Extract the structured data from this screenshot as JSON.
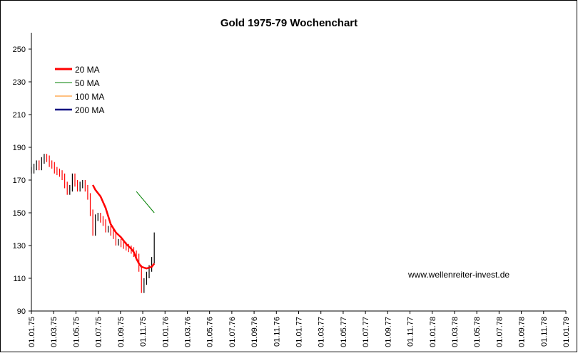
{
  "chart_data": {
    "type": "line",
    "title": "Gold 1975-79 Wochenchart",
    "xlabel": "",
    "ylabel": "",
    "ylim": [
      90,
      260
    ],
    "yticks": [
      90,
      110,
      130,
      150,
      170,
      190,
      210,
      230,
      250
    ],
    "x_ticks": [
      "01.01.75",
      "01.03.75",
      "01.05.75",
      "01.07.75",
      "01.09.75",
      "01.11.75",
      "01.01.76",
      "01.03.76",
      "01.05.76",
      "01.07.76",
      "01.09.76",
      "01.11.76",
      "01.01.77",
      "01.03.77",
      "01.05.77",
      "01.07.77",
      "01.09.77",
      "01.11.77",
      "01.01.78",
      "01.03.78",
      "01.05.78",
      "01.07.78",
      "01.09.78",
      "01.11.78",
      "01.01.79"
    ],
    "grid": false,
    "legend_position": "top-left",
    "watermark": "www.wellenreiter-invest.de",
    "colors": {
      "price_up": "#000000",
      "price_down": "#ff0000",
      "ma20": "#ff0000",
      "ma50": "#008000",
      "ma100": "#ff8000",
      "ma200": "#000080"
    },
    "price": {
      "name": "",
      "x": [
        0,
        1,
        2,
        3,
        4,
        5,
        6,
        7,
        8,
        9,
        10,
        11,
        12,
        13,
        14,
        15,
        16,
        17,
        18,
        19,
        20,
        21,
        22,
        23,
        24,
        25,
        26,
        27,
        28,
        29,
        30,
        31,
        32,
        33,
        34,
        35,
        36,
        37,
        38,
        39,
        40,
        41,
        42,
        43,
        44,
        45,
        46,
        47,
        48
      ],
      "close": [
        176,
        178,
        180,
        178,
        182,
        184,
        183,
        180,
        179,
        176,
        175,
        174,
        172,
        167,
        163,
        165,
        172,
        168,
        165,
        167,
        168,
        165,
        160,
        150,
        138,
        147,
        148,
        146,
        144,
        140,
        140,
        138,
        136,
        132,
        132,
        131,
        130,
        129,
        128,
        127,
        125,
        123,
        116,
        103,
        108,
        112,
        116,
        121,
        136
      ]
    },
    "series": [
      {
        "name": "20 MA",
        "x": [
          24,
          25,
          27,
          29,
          31,
          33,
          35,
          37,
          39,
          40,
          41,
          42,
          43,
          45,
          47,
          48
        ],
        "values": [
          167,
          164,
          160,
          153,
          143,
          138,
          135,
          131,
          128,
          126,
          122,
          119,
          117,
          116,
          117,
          119
        ]
      },
      {
        "name": "50 MA",
        "x": [
          41,
          48
        ],
        "values": [
          163,
          150
        ]
      },
      {
        "name": "100 MA",
        "x": [],
        "values": []
      },
      {
        "name": "200 MA",
        "x": [],
        "values": []
      }
    ]
  }
}
